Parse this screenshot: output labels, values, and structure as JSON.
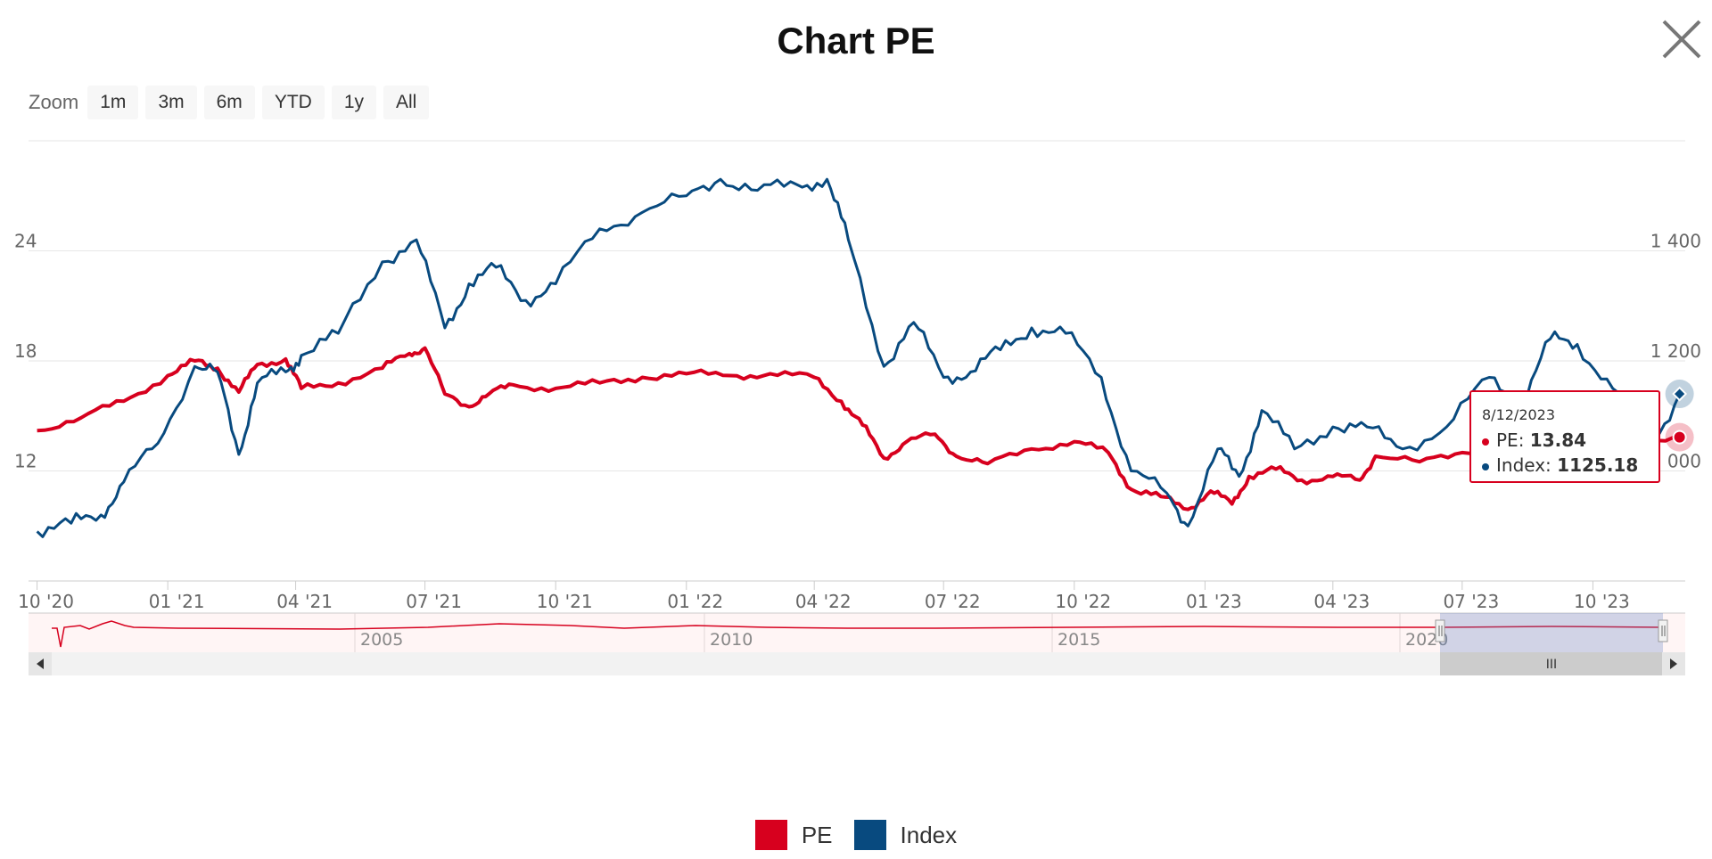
{
  "header": {
    "title": "Chart PE"
  },
  "zoom": {
    "label": "Zoom",
    "buttons": [
      "1m",
      "3m",
      "6m",
      "YTD",
      "1y",
      "All"
    ]
  },
  "legend": [
    {
      "label": "PE",
      "color": "#d7001e"
    },
    {
      "label": "Index",
      "color": "#084a7f"
    }
  ],
  "tooltip": {
    "date": "8/12/2023",
    "pe_label": "PE:",
    "pe_value": "13.84",
    "index_label": "Index:",
    "index_value": "1125.18"
  },
  "navigator": {
    "year_labels": [
      "2005",
      "2010",
      "2015",
      "2020"
    ],
    "handle_glyph": "III"
  },
  "icons": {
    "close": "close-icon",
    "scroll_left": "arrow-left-icon",
    "scroll_right": "arrow-right-icon"
  },
  "chart_data": {
    "type": "line",
    "x_tick_labels": [
      "10 '20",
      "01 '21",
      "04 '21",
      "07 '21",
      "10 '21",
      "01 '22",
      "04 '22",
      "07 '22",
      "10 '22",
      "01 '23",
      "04 '23",
      "07 '23",
      "10 '23"
    ],
    "y_left": {
      "ticks": [
        12,
        18,
        24
      ],
      "tick_labels": [
        "12",
        "18",
        "24"
      ],
      "range": [
        6,
        30
      ]
    },
    "y_right": {
      "ticks": [
        1000,
        1200,
        1400
      ],
      "tick_labels": [
        "1 000",
        "1 200",
        "1 400"
      ],
      "range": [
        800,
        1600
      ]
    },
    "series": [
      {
        "name": "PE",
        "axis": "left",
        "color": "#d7001e",
        "points": [
          [
            "2020-10-01",
            14.2
          ],
          [
            "2020-11-01",
            14.9
          ],
          [
            "2020-12-01",
            15.8
          ],
          [
            "2021-01-01",
            17.2
          ],
          [
            "2021-01-20",
            18.0
          ],
          [
            "2021-02-05",
            17.6
          ],
          [
            "2021-02-20",
            16.3
          ],
          [
            "2021-03-05",
            17.8
          ],
          [
            "2021-03-25",
            18.1
          ],
          [
            "2021-04-05",
            16.5
          ],
          [
            "2021-05-01",
            16.8
          ],
          [
            "2021-06-01",
            17.6
          ],
          [
            "2021-06-20",
            18.4
          ],
          [
            "2021-07-01",
            18.7
          ],
          [
            "2021-07-15",
            16.2
          ],
          [
            "2021-08-01",
            15.5
          ],
          [
            "2021-08-15",
            16.2
          ],
          [
            "2021-09-01",
            16.7
          ],
          [
            "2021-10-01",
            16.5
          ],
          [
            "2021-11-01",
            16.8
          ],
          [
            "2021-12-01",
            17.1
          ],
          [
            "2022-01-01",
            17.3
          ],
          [
            "2022-02-01",
            17.2
          ],
          [
            "2022-03-01",
            17.3
          ],
          [
            "2022-04-01",
            17.1
          ],
          [
            "2022-04-20",
            15.8
          ],
          [
            "2022-05-05",
            14.5
          ],
          [
            "2022-05-20",
            12.7
          ],
          [
            "2022-06-05",
            13.6
          ],
          [
            "2022-06-25",
            14.0
          ],
          [
            "2022-07-10",
            12.8
          ],
          [
            "2022-08-01",
            12.4
          ],
          [
            "2022-09-01",
            13.2
          ],
          [
            "2022-10-01",
            13.6
          ],
          [
            "2022-10-25",
            13.0
          ],
          [
            "2022-11-10",
            11.0
          ],
          [
            "2022-12-01",
            10.6
          ],
          [
            "2022-12-20",
            9.9
          ],
          [
            "2023-01-05",
            10.9
          ],
          [
            "2023-01-20",
            10.2
          ],
          [
            "2023-02-01",
            11.7
          ],
          [
            "2023-02-20",
            12.1
          ],
          [
            "2023-03-10",
            11.5
          ],
          [
            "2023-04-01",
            11.7
          ],
          [
            "2023-04-20",
            11.5
          ],
          [
            "2023-05-01",
            12.8
          ],
          [
            "2023-06-01",
            12.5
          ],
          [
            "2023-07-01",
            13.0
          ],
          [
            "2023-08-01",
            13.5
          ],
          [
            "2023-08-12",
            13.84
          ],
          [
            "2023-09-01",
            13.9
          ],
          [
            "2023-10-01",
            13.2
          ],
          [
            "2023-11-01",
            13.5
          ],
          [
            "2023-12-01",
            13.84
          ]
        ]
      },
      {
        "name": "Index",
        "axis": "right",
        "color": "#084a7f",
        "points": [
          [
            "2020-10-01",
            890
          ],
          [
            "2020-10-25",
            905
          ],
          [
            "2020-11-15",
            920
          ],
          [
            "2020-12-01",
            980
          ],
          [
            "2020-12-25",
            1050
          ],
          [
            "2021-01-20",
            1190
          ],
          [
            "2021-02-05",
            1180
          ],
          [
            "2021-02-20",
            1030
          ],
          [
            "2021-03-05",
            1160
          ],
          [
            "2021-03-25",
            1180
          ],
          [
            "2021-04-05",
            1210
          ],
          [
            "2021-05-01",
            1250
          ],
          [
            "2021-06-01",
            1380
          ],
          [
            "2021-06-25",
            1420
          ],
          [
            "2021-07-15",
            1260
          ],
          [
            "2021-08-01",
            1340
          ],
          [
            "2021-08-20",
            1370
          ],
          [
            "2021-09-10",
            1310
          ],
          [
            "2021-10-01",
            1340
          ],
          [
            "2021-11-01",
            1440
          ],
          [
            "2021-12-01",
            1470
          ],
          [
            "2022-01-01",
            1500
          ],
          [
            "2022-01-25",
            1530
          ],
          [
            "2022-02-20",
            1510
          ],
          [
            "2022-03-20",
            1520
          ],
          [
            "2022-04-10",
            1530
          ],
          [
            "2022-04-25",
            1420
          ],
          [
            "2022-05-20",
            1190
          ],
          [
            "2022-06-10",
            1270
          ],
          [
            "2022-07-01",
            1170
          ],
          [
            "2022-07-20",
            1180
          ],
          [
            "2022-08-10",
            1220
          ],
          [
            "2022-09-01",
            1260
          ],
          [
            "2022-09-25",
            1250
          ],
          [
            "2022-10-20",
            1170
          ],
          [
            "2022-11-10",
            1000
          ],
          [
            "2022-12-05",
            960
          ],
          [
            "2022-12-20",
            900
          ],
          [
            "2023-01-10",
            1040
          ],
          [
            "2023-01-25",
            990
          ],
          [
            "2023-02-10",
            1110
          ],
          [
            "2023-03-05",
            1040
          ],
          [
            "2023-04-01",
            1080
          ],
          [
            "2023-04-25",
            1080
          ],
          [
            "2023-05-20",
            1040
          ],
          [
            "2023-06-20",
            1080
          ],
          [
            "2023-07-20",
            1170
          ],
          [
            "2023-08-12",
            1125.18
          ],
          [
            "2023-09-01",
            1240
          ],
          [
            "2023-09-20",
            1230
          ],
          [
            "2023-10-15",
            1150
          ],
          [
            "2023-11-10",
            1040
          ],
          [
            "2023-12-01",
            1140
          ]
        ]
      }
    ],
    "grid": true,
    "legend_position": "bottom-center",
    "tooltip_date": "2023-08-12"
  }
}
